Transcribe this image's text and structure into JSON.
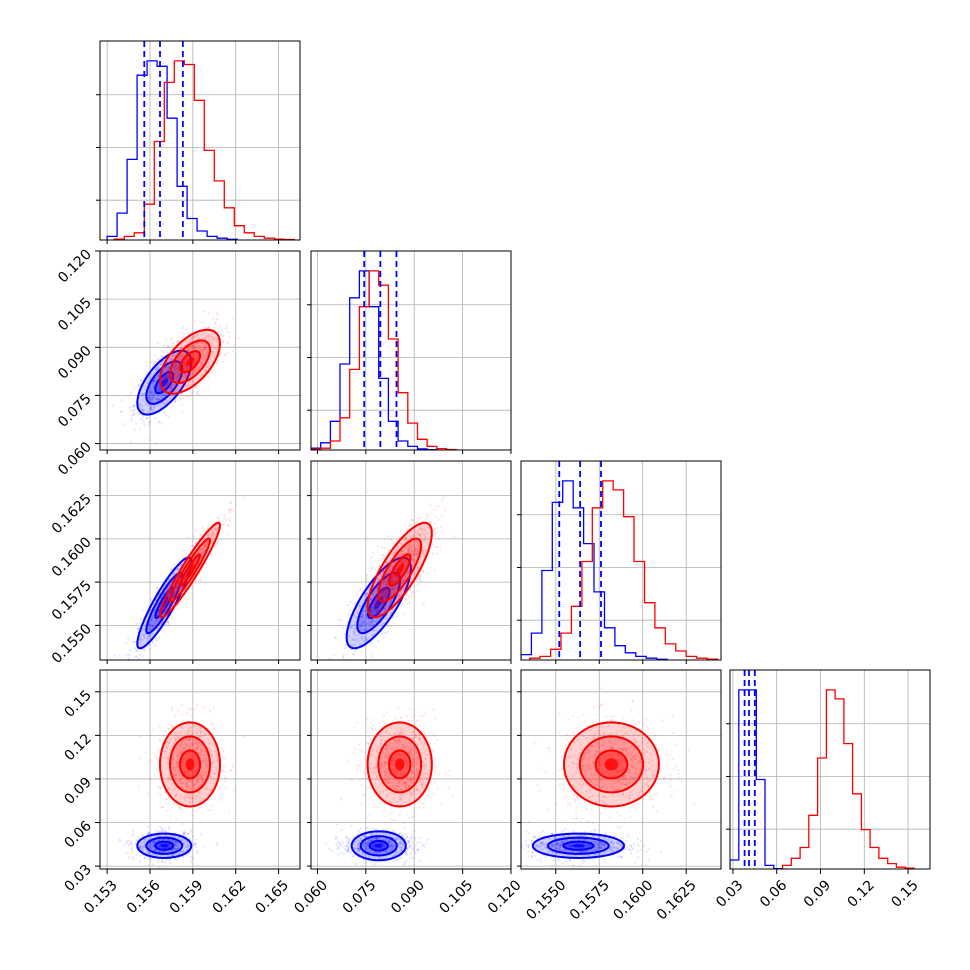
{
  "chart_data": {
    "type": "corner",
    "grid": true,
    "variables": [
      {
        "range": [
          0.1525,
          0.1665
        ],
        "ticks": [
          0.153,
          0.156,
          0.159,
          0.162,
          0.165
        ],
        "tick_labels": [
          "0.153",
          "0.156",
          "0.159",
          "0.162",
          "0.165"
        ]
      },
      {
        "range": [
          0.058,
          0.12
        ],
        "ticks": [
          0.06,
          0.075,
          0.09,
          0.105,
          0.12
        ],
        "tick_labels": [
          "0.060",
          "0.075",
          "0.090",
          "0.105",
          "0.120"
        ]
      },
      {
        "range": [
          0.153,
          0.1645
        ],
        "ticks": [
          0.155,
          0.1575,
          0.16,
          0.1625
        ],
        "tick_labels": [
          "0.1550",
          "0.1575",
          "0.1600",
          "0.1625"
        ]
      },
      {
        "range": [
          0.028,
          0.165
        ],
        "ticks": [
          0.03,
          0.06,
          0.09,
          0.12,
          0.15
        ],
        "tick_labels": [
          "0.03",
          "0.06",
          "0.09",
          "0.12",
          "0.15"
        ]
      }
    ],
    "series": [
      {
        "color": "#ff0000",
        "histograms": [
          {
            "edges": [
              0.1535,
              0.1542,
              0.1549,
              0.1556,
              0.1563,
              0.157,
              0.1577,
              0.1584,
              0.1591,
              0.1598,
              0.1605,
              0.1612,
              0.1619,
              0.1626,
              0.1633,
              0.164,
              0.1647,
              0.1654,
              0.1661
            ],
            "counts": [
              0.005,
              0.02,
              0.04,
              0.2,
              0.55,
              0.88,
              1.0,
              0.98,
              0.78,
              0.5,
              0.33,
              0.18,
              0.08,
              0.04,
              0.02,
              0.01,
              0.005,
              0.003
            ]
          },
          {
            "edges": [
              0.058,
              0.061,
              0.064,
              0.067,
              0.07,
              0.073,
              0.076,
              0.079,
              0.082,
              0.085,
              0.088,
              0.091,
              0.094,
              0.097,
              0.1,
              0.103
            ],
            "counts": [
              0.005,
              0.01,
              0.05,
              0.18,
              0.45,
              0.8,
              1.0,
              0.92,
              0.62,
              0.32,
              0.15,
              0.06,
              0.02,
              0.008,
              0.003
            ]
          },
          {
            "edges": [
              0.1535,
              0.1541,
              0.1547,
              0.1553,
              0.1559,
              0.1565,
              0.1571,
              0.1577,
              0.1583,
              0.1589,
              0.1595,
              0.1601,
              0.1607,
              0.1613,
              0.1619,
              0.1625,
              0.1631,
              0.1637,
              0.1643
            ],
            "counts": [
              0.01,
              0.02,
              0.06,
              0.15,
              0.3,
              0.55,
              0.85,
              1.0,
              0.95,
              0.8,
              0.55,
              0.32,
              0.18,
              0.09,
              0.05,
              0.02,
              0.01,
              0.005
            ]
          },
          {
            "edges": [
              0.064,
              0.07,
              0.076,
              0.082,
              0.088,
              0.094,
              0.1,
              0.106,
              0.112,
              0.118,
              0.124,
              0.13,
              0.136,
              0.142,
              0.148,
              0.154
            ],
            "counts": [
              0.02,
              0.06,
              0.12,
              0.3,
              0.62,
              1.0,
              0.95,
              0.7,
              0.42,
              0.22,
              0.12,
              0.06,
              0.03,
              0.01,
              0.005
            ]
          }
        ],
        "mean": [
          0.1588,
          0.0855,
          0.1582,
          0.1
        ],
        "cov": [
          [
            1e-06,
            2.7e-06,
            1.23e-06,
            0.0
          ],
          [
            2.7e-06,
            2.25e-05,
            4.8e-06,
            0.0
          ],
          [
            1.23e-06,
            4.8e-06,
            1.69e-06,
            0.0
          ],
          [
            0.0,
            0.0,
            0.0,
            0.00019
          ]
        ],
        "contour_sigmas": [
          0.7,
          1.4,
          2.1
        ]
      },
      {
        "color": "#0000ff",
        "histograms": [
          {
            "edges": [
              0.153,
              0.1537,
              0.1544,
              0.1551,
              0.1558,
              0.1565,
              0.1572,
              0.1579,
              0.1586,
              0.1593,
              0.16,
              0.1607,
              0.1614,
              0.1621
            ],
            "counts": [
              0.02,
              0.15,
              0.45,
              0.92,
              1.0,
              0.97,
              0.68,
              0.3,
              0.12,
              0.05,
              0.02,
              0.01,
              0.004
            ]
          },
          {
            "edges": [
              0.058,
              0.061,
              0.064,
              0.067,
              0.07,
              0.073,
              0.076,
              0.079,
              0.082,
              0.085,
              0.088,
              0.091,
              0.094,
              0.097
            ],
            "counts": [
              0.01,
              0.04,
              0.16,
              0.48,
              0.85,
              1.0,
              0.8,
              0.4,
              0.16,
              0.05,
              0.02,
              0.006,
              0.002
            ]
          },
          {
            "edges": [
              0.153,
              0.1536,
              0.1542,
              0.1548,
              0.1554,
              0.156,
              0.1566,
              0.1572,
              0.1578,
              0.1584,
              0.159,
              0.1596,
              0.1602,
              0.1608,
              0.1614
            ],
            "counts": [
              0.03,
              0.15,
              0.5,
              0.88,
              1.0,
              0.85,
              0.65,
              0.38,
              0.18,
              0.08,
              0.04,
              0.02,
              0.01,
              0.004
            ]
          },
          {
            "edges": [
              0.028,
              0.034,
              0.04,
              0.046,
              0.052,
              0.058,
              0.064
            ],
            "counts": [
              0.05,
              1.0,
              1.0,
              0.5,
              0.02,
              0.002
            ]
          }
        ],
        "mean": [
          0.157,
          0.079,
          0.1563,
          0.044
        ],
        "cov": [
          [
            8.1e-07,
            2.7e-06,
            1.01e-06,
            0.0
          ],
          [
            2.7e-06,
            2.25e-05,
            4.5e-06,
            0.0
          ],
          [
            1.01e-06,
            4.5e-06,
            1.56e-06,
            0.0
          ],
          [
            0.0,
            0.0,
            0.0,
            1.6e-05
          ]
        ],
        "contour_sigmas": [
          0.7,
          1.4,
          2.1
        ]
      }
    ],
    "quantile_lines": {
      "color": "#0000ff",
      "style": "dashed",
      "values": [
        [
          0.1556,
          0.1567,
          0.1583
        ],
        [
          0.0745,
          0.0795,
          0.0845
        ],
        [
          0.1552,
          0.1564,
          0.1576
        ],
        [
          0.038,
          0.041,
          0.045
        ]
      ]
    }
  }
}
